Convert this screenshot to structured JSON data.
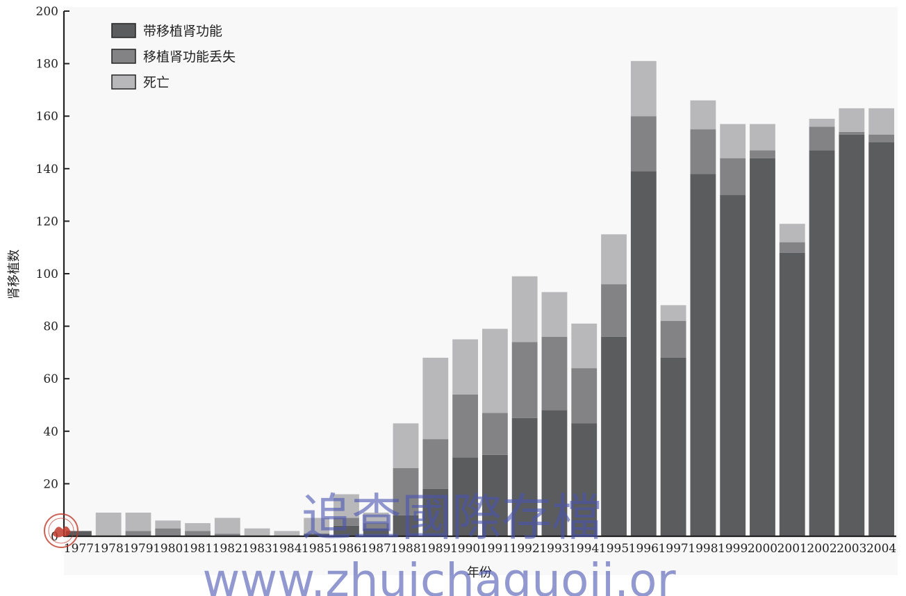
{
  "chart_data": {
    "type": "bar",
    "stacked": true,
    "xlabel": "年份",
    "ylabel": "肾移植数",
    "ylim": [
      0,
      200
    ],
    "yticks": [
      0,
      20,
      40,
      60,
      80,
      100,
      120,
      140,
      160,
      180,
      200
    ],
    "grid": false,
    "legend_position": "top-left",
    "categories": [
      "1977",
      "1978",
      "1979",
      "1980",
      "1981",
      "1982",
      "1983",
      "1984",
      "1985",
      "1986",
      "1987",
      "1988",
      "1989",
      "1990",
      "1991",
      "1992",
      "1993",
      "1994",
      "1995",
      "1996",
      "1997",
      "1998",
      "1999",
      "2000",
      "2001",
      "2002",
      "2003",
      "2004"
    ],
    "series": [
      {
        "name": "带移植肾功能",
        "color": "#5b5c5e",
        "values": [
          2,
          0,
          0,
          0,
          0,
          0,
          0,
          0,
          1,
          4,
          3,
          8,
          18,
          30,
          31,
          45,
          48,
          43,
          76,
          139,
          68,
          138,
          130,
          144,
          108,
          147,
          153,
          150
        ]
      },
      {
        "name": "移植肾功能丢失",
        "color": "#838386",
        "values": [
          0,
          0,
          2,
          3,
          2,
          1,
          0,
          0,
          0,
          3,
          2,
          18,
          19,
          24,
          16,
          29,
          28,
          21,
          20,
          21,
          14,
          17,
          14,
          3,
          4,
          9,
          1,
          3
        ]
      },
      {
        "name": "死亡",
        "color": "#b8b8ba",
        "values": [
          0,
          9,
          7,
          3,
          3,
          6,
          3,
          2,
          6,
          9,
          4,
          17,
          31,
          21,
          32,
          25,
          17,
          17,
          19,
          21,
          6,
          11,
          13,
          10,
          7,
          3,
          9,
          10
        ]
      }
    ]
  },
  "watermark": {
    "line1": "追查國際存檔",
    "line2": "www.zhuichaguoji.or"
  }
}
